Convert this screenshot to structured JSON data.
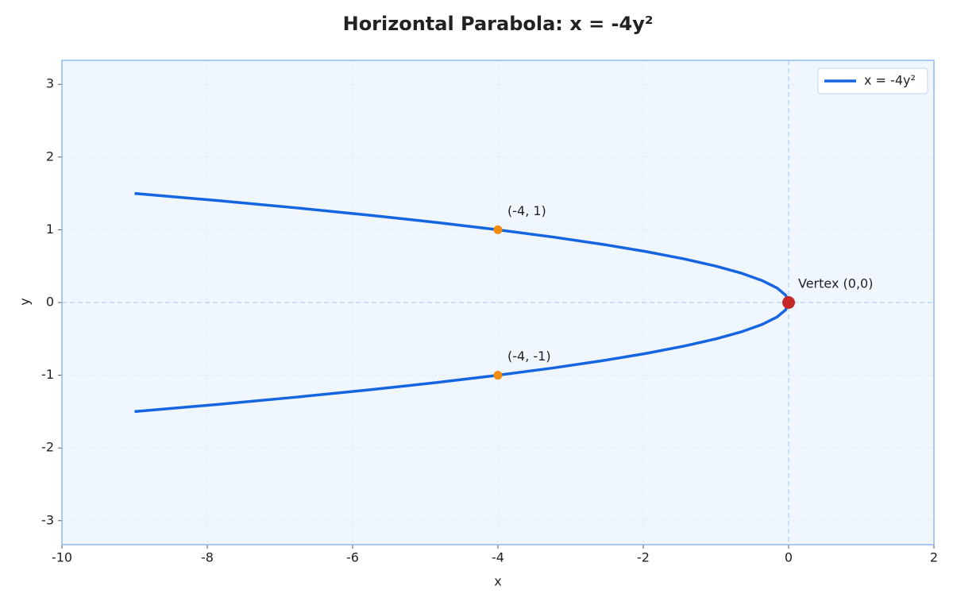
{
  "chart_data": {
    "type": "line",
    "title": "Horizontal Parabola: x = -4y²",
    "xlabel": "x",
    "ylabel": "y",
    "xlim": [
      -10,
      2
    ],
    "ylim": [
      -3.33,
      3.33
    ],
    "xticks": [
      -10,
      -8,
      -6,
      -4,
      -2,
      0,
      2
    ],
    "yticks": [
      -3,
      -2,
      -1,
      0,
      1,
      2,
      3
    ],
    "grid": true,
    "legend": "upper right",
    "axhline": 0,
    "axvline": 0,
    "series": [
      {
        "name": "x = -4y²",
        "color": "#1565e0",
        "x": [
          -9,
          -7.84,
          -6.76,
          -5.76,
          -4.84,
          -4,
          -3.24,
          -2.56,
          -1.96,
          -1.44,
          -1,
          -0.64,
          -0.36,
          -0.16,
          -0.04,
          0,
          -0.04,
          -0.16,
          -0.36,
          -0.64,
          -1,
          -1.44,
          -1.96,
          -2.56,
          -3.24,
          -4,
          -4.84,
          -5.76,
          -6.76,
          -7.84,
          -9
        ],
        "values": [
          -1.5,
          -1.4,
          -1.3,
          -1.2,
          -1.1,
          -1,
          -0.9,
          -0.8,
          -0.7,
          -0.6,
          -0.5,
          -0.4,
          -0.3,
          -0.2,
          -0.1,
          0,
          0.1,
          0.2,
          0.3,
          0.4,
          0.5,
          0.6,
          0.7,
          0.8,
          0.9,
          1,
          1.1,
          1.2,
          1.3,
          1.4,
          1.5
        ]
      }
    ],
    "points": [
      {
        "x": -4,
        "y": 1,
        "color": "#f28c0f",
        "label": "(-4, 1)"
      },
      {
        "x": -4,
        "y": -1,
        "color": "#f28c0f",
        "label": "(-4, -1)"
      },
      {
        "x": 0,
        "y": 0,
        "color": "#c62828",
        "label": "Vertex (0,0)"
      }
    ]
  }
}
